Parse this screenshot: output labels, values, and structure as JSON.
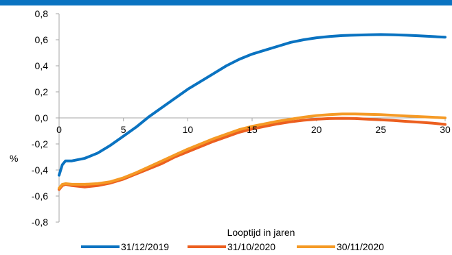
{
  "colors": {
    "banner": "#0a73c1",
    "axis": "#a6a6a6"
  },
  "chart_data": {
    "type": "line",
    "title": "",
    "xlabel": "Looptijd in jaren",
    "ylabel": "%",
    "xlim": [
      0,
      30
    ],
    "ylim": [
      -0.8,
      0.8
    ],
    "x_ticks": [
      0,
      5,
      10,
      15,
      20,
      25,
      30
    ],
    "y_ticks": [
      0.8,
      0.6,
      0.4,
      0.2,
      0.0,
      -0.2,
      -0.4,
      -0.6,
      -0.8
    ],
    "x_tick_labels": [
      "0",
      "5",
      "10",
      "15",
      "20",
      "25",
      "30"
    ],
    "y_tick_labels": [
      "0,8",
      "0,6",
      "0,4",
      "0,2",
      "0,0",
      "-0,2",
      "-0,4",
      "-0,6",
      "-0,8"
    ],
    "grid": false,
    "legend_position": "bottom",
    "series": [
      {
        "name": "31/12/2019",
        "color": "#0a73c1",
        "points": [
          [
            0,
            -0.44
          ],
          [
            0.25,
            -0.36
          ],
          [
            0.5,
            -0.33
          ],
          [
            1,
            -0.33
          ],
          [
            2,
            -0.31
          ],
          [
            3,
            -0.27
          ],
          [
            4,
            -0.21
          ],
          [
            5,
            -0.14
          ],
          [
            6,
            -0.07
          ],
          [
            7,
            0.01
          ],
          [
            8,
            0.08
          ],
          [
            9,
            0.15
          ],
          [
            10,
            0.22
          ],
          [
            11,
            0.28
          ],
          [
            12,
            0.34
          ],
          [
            13,
            0.4
          ],
          [
            14,
            0.45
          ],
          [
            15,
            0.49
          ],
          [
            16,
            0.52
          ],
          [
            17,
            0.55
          ],
          [
            18,
            0.58
          ],
          [
            19,
            0.6
          ],
          [
            20,
            0.615
          ],
          [
            21,
            0.625
          ],
          [
            22,
            0.632
          ],
          [
            23,
            0.636
          ],
          [
            24,
            0.638
          ],
          [
            25,
            0.64
          ],
          [
            26,
            0.638
          ],
          [
            27,
            0.635
          ],
          [
            28,
            0.63
          ],
          [
            29,
            0.625
          ],
          [
            30,
            0.62
          ]
        ]
      },
      {
        "name": "31/10/2020",
        "color": "#ec5f1f",
        "points": [
          [
            0,
            -0.55
          ],
          [
            0.25,
            -0.52
          ],
          [
            0.5,
            -0.51
          ],
          [
            1,
            -0.52
          ],
          [
            2,
            -0.53
          ],
          [
            3,
            -0.52
          ],
          [
            4,
            -0.5
          ],
          [
            5,
            -0.47
          ],
          [
            6,
            -0.43
          ],
          [
            7,
            -0.39
          ],
          [
            8,
            -0.35
          ],
          [
            9,
            -0.3
          ],
          [
            10,
            -0.26
          ],
          [
            11,
            -0.22
          ],
          [
            12,
            -0.18
          ],
          [
            13,
            -0.145
          ],
          [
            14,
            -0.11
          ],
          [
            15,
            -0.085
          ],
          [
            16,
            -0.065
          ],
          [
            17,
            -0.045
          ],
          [
            18,
            -0.03
          ],
          [
            19,
            -0.018
          ],
          [
            20,
            -0.01
          ],
          [
            21,
            -0.005
          ],
          [
            22,
            -0.003
          ],
          [
            23,
            -0.005
          ],
          [
            24,
            -0.01
          ],
          [
            25,
            -0.015
          ],
          [
            26,
            -0.02
          ],
          [
            27,
            -0.027
          ],
          [
            28,
            -0.033
          ],
          [
            29,
            -0.04
          ],
          [
            30,
            -0.05
          ]
        ]
      },
      {
        "name": "30/11/2020",
        "color": "#f59a25",
        "points": [
          [
            0,
            -0.54
          ],
          [
            0.25,
            -0.51
          ],
          [
            0.5,
            -0.505
          ],
          [
            1,
            -0.51
          ],
          [
            2,
            -0.51
          ],
          [
            3,
            -0.505
          ],
          [
            4,
            -0.49
          ],
          [
            5,
            -0.46
          ],
          [
            6,
            -0.42
          ],
          [
            7,
            -0.375
          ],
          [
            8,
            -0.33
          ],
          [
            9,
            -0.285
          ],
          [
            10,
            -0.24
          ],
          [
            11,
            -0.2
          ],
          [
            12,
            -0.16
          ],
          [
            13,
            -0.125
          ],
          [
            14,
            -0.09
          ],
          [
            15,
            -0.065
          ],
          [
            16,
            -0.045
          ],
          [
            17,
            -0.025
          ],
          [
            18,
            -0.01
          ],
          [
            19,
            0.005
          ],
          [
            20,
            0.018
          ],
          [
            21,
            0.025
          ],
          [
            22,
            0.03
          ],
          [
            23,
            0.03
          ],
          [
            24,
            0.028
          ],
          [
            25,
            0.025
          ],
          [
            26,
            0.02
          ],
          [
            27,
            0.015
          ],
          [
            28,
            0.01
          ],
          [
            29,
            0.005
          ],
          [
            30,
            0.0
          ]
        ]
      }
    ]
  }
}
